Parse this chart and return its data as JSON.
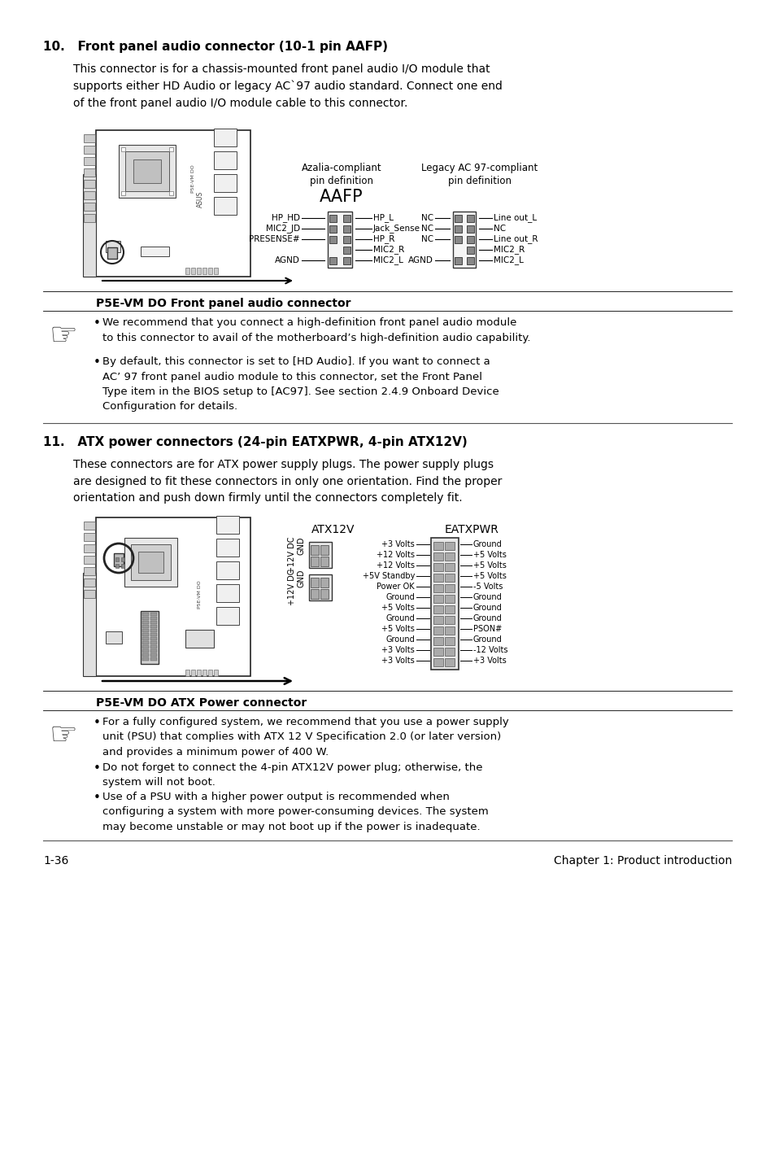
{
  "bg_color": "#ffffff",
  "text_color": "#000000",
  "section10_title": "10.   Front panel audio connector (10-1 pin AAFP)",
  "section10_body1": "This connector is for a chassis-mounted front panel audio I/O module that\nsupports either HD Audio or legacy AC`97 audio standard. Connect one end\nof the front panel audio I/O module cable to this connector.",
  "section10_caption": "P5E-VM DO Front panel audio connector",
  "section10_note1": "We recommend that you connect a high-definition front panel audio module\nto this connector to avail of the motherboard’s high-definition audio capability.",
  "section10_note2a": "By default, this connector is set to [HD Audio]. If you want to connect a\nAC’ 97 front panel audio module to this connector, set the ",
  "section10_note2b": "Front Panel\nType",
  "section10_note2c": " item in the BIOS setup to [AC97]. See section 2.4.9 Onboard Device\nConfiguration for details.",
  "section11_title": "11.   ATX power connectors (24-pin EATXPWR, 4-pin ATX12V)",
  "section11_body1": "These connectors are for ATX power supply plugs. The power supply plugs\nare designed to fit these connectors in only one orientation. Find the proper\norientation and push down firmly until the connectors completely fit.",
  "section11_caption": "P5E-VM DO ATX Power connector",
  "section11_note1": "For a fully configured system, we recommend that you use a power supply\nunit (PSU) that complies with ATX 12 V Specification 2.0 (or later version)\nand provides a minimum power of 400 W.",
  "section11_note2": "Do not forget to connect the 4-pin ATX12V power plug; otherwise, the\nsystem will not boot.",
  "section11_note3": "Use of a PSU with a higher power output is recommended when\nconfiguring a system with more power-consuming devices. The system\nmay become unstable or may not boot up if the power is inadequate.",
  "aafp_pins_left": [
    "HP_HD",
    "MIC2_JD",
    "PRESENSE#",
    "AGND"
  ],
  "aafp_pins_right": [
    "HP_L",
    "Jack_Sense",
    "HP_R",
    "MIC2_R",
    "MIC2_L"
  ],
  "ac97_pins_left": [
    "NC",
    "NC",
    "NC",
    "AGND"
  ],
  "ac97_pins_right": [
    "Line out_L",
    "NC",
    "Line out_R",
    "MIC2_R",
    "MIC2_L"
  ],
  "eatx_pins_left": [
    "+3 Volts",
    "+12 Volts",
    "+12 Volts",
    "+5V Standby",
    "Power OK",
    "Ground",
    "+5 Volts",
    "Ground",
    "+5 Volts",
    "Ground",
    "+3 Volts",
    "+3 Volts"
  ],
  "eatx_pins_right": [
    "Ground",
    "+5 Volts",
    "+5 Volts",
    "+5 Volts",
    "-5 Volts",
    "Ground",
    "Ground",
    "Ground",
    "PSON#",
    "Ground",
    "-12 Volts",
    "+3 Volts"
  ],
  "footer_left": "1-36",
  "footer_right": "Chapter 1: Product introduction"
}
